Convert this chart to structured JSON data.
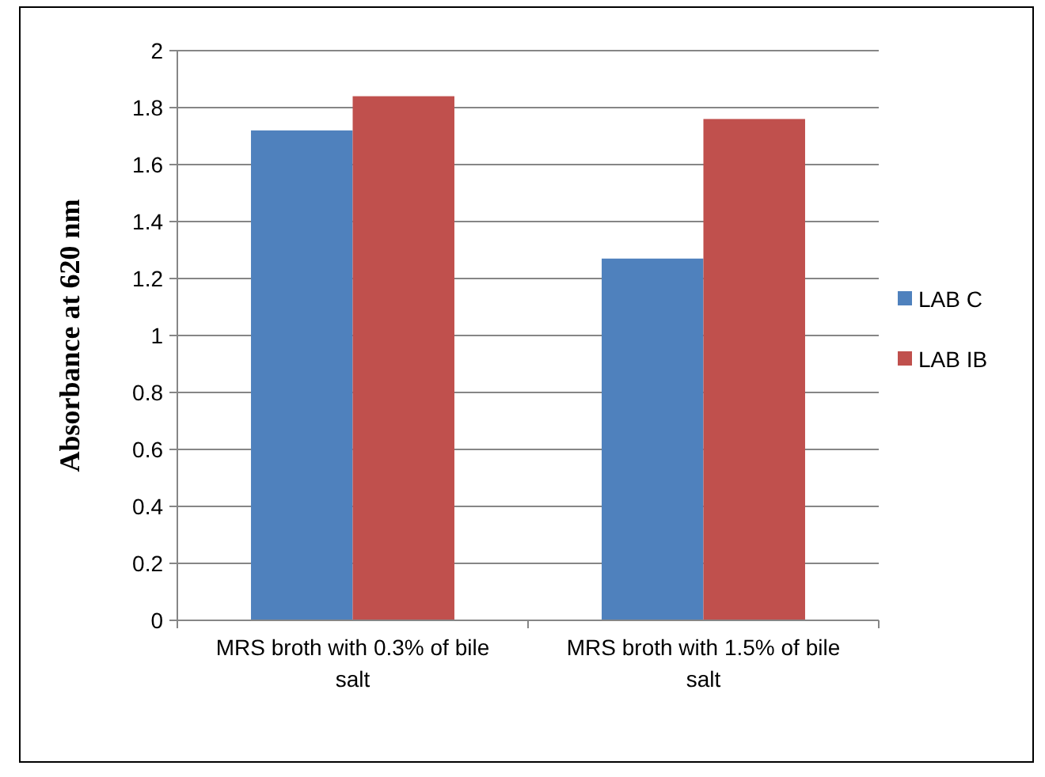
{
  "chart_data": {
    "type": "bar",
    "ylabel": "Absorbance at 620 nm",
    "categories": [
      "MRS broth with 0.3% of bile salt",
      "MRS broth with 1.5% of bile salt"
    ],
    "series": [
      {
        "name": "LAB C",
        "color": "#4f81bd",
        "values": [
          1.72,
          1.27
        ]
      },
      {
        "name": "LAB IB",
        "color": "#c0504d",
        "values": [
          1.84,
          1.76
        ]
      }
    ],
    "ylim": [
      0,
      2
    ],
    "yticks": [
      0,
      0.2,
      0.4,
      0.6,
      0.8,
      1,
      1.2,
      1.4,
      1.6,
      1.8,
      2
    ],
    "grid": "y",
    "legend": "right"
  }
}
